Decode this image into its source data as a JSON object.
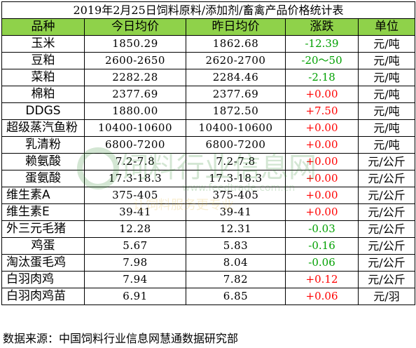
{
  "title": "2019年2月25日饲料原料/添加剂/畜禽产品价格统计表",
  "headers": {
    "name": "品种",
    "today": "今日均价",
    "yesterday": "昨日均价",
    "change": "涨跌",
    "unit": "单位"
  },
  "rows": [
    {
      "name": "玉米",
      "today": "1850.29",
      "yesterday": "1862.68",
      "change": "-12.39",
      "unit": "元/吨"
    },
    {
      "name": "豆粕",
      "today": "2600-2650",
      "yesterday": "2620-2700",
      "change": "-20～50",
      "unit": "元/吨"
    },
    {
      "name": "菜粕",
      "today": "2282.28",
      "yesterday": "2284.46",
      "change": "-2.18",
      "unit": "元/吨"
    },
    {
      "name": "棉粕",
      "today": "2377.69",
      "yesterday": "2377.69",
      "change": "+0.00",
      "unit": "元/吨"
    },
    {
      "name": "DDGS",
      "today": "1880.00",
      "yesterday": "1872.50",
      "change": "+7.50",
      "unit": "元/吨"
    },
    {
      "name": "超级蒸汽鱼粉",
      "today": "10400-10600",
      "yesterday": "10400-10600",
      "change": "+0.00",
      "unit": "元/吨"
    },
    {
      "name": "乳清粉",
      "today": "6800-7200",
      "yesterday": "6800-7200",
      "change": "+0.00",
      "unit": "元/吨"
    },
    {
      "name": "赖氨酸",
      "today": "7.2-7.8",
      "yesterday": "7.2-7.8",
      "change": "+0.00",
      "unit": "元/公斤"
    },
    {
      "name": "蛋氨酸",
      "today": "17.3-18.3",
      "yesterday": "17.3-18.3",
      "change": "+0.00",
      "unit": "元/公斤"
    },
    {
      "name": "维生素A",
      "today": "375-405",
      "yesterday": "375-405",
      "change": "+0.00",
      "unit": "元/公斤"
    },
    {
      "name": "维生素E",
      "today": "39-41",
      "yesterday": "39-41",
      "change": "+0.00",
      "unit": "元/公斤"
    },
    {
      "name": "外三元毛猪",
      "today": "12.28",
      "yesterday": "12.31",
      "change": "-0.03",
      "unit": "元/公斤"
    },
    {
      "name": "鸡蛋",
      "today": "5.67",
      "yesterday": "5.83",
      "change": "-0.16",
      "unit": "元/公斤"
    },
    {
      "name": "淘汰蛋毛鸡",
      "today": "7.98",
      "yesterday": "8.04",
      "change": "-0.06",
      "unit": "元/公斤"
    },
    {
      "name": "白羽肉鸡",
      "today": "7.94",
      "yesterday": "7.82",
      "change": "+0.12",
      "unit": "元/公斤"
    },
    {
      "name": "白羽肉鸡苗",
      "today": "6.91",
      "yesterday": "6.85",
      "change": "+0.06",
      "unit": "元/羽"
    }
  ],
  "footer": "数据来源：中国饲料行业信息网慧通数据研究部",
  "watermark": {
    "text_main": "饲料行业信息网",
    "text_url": "www.feedtrade.com.cn",
    "text_slogan": "让饲料服务更专业"
  },
  "colors": {
    "header_bg": "#8fd24a",
    "up": "#ff0000",
    "down": "#00a000"
  }
}
